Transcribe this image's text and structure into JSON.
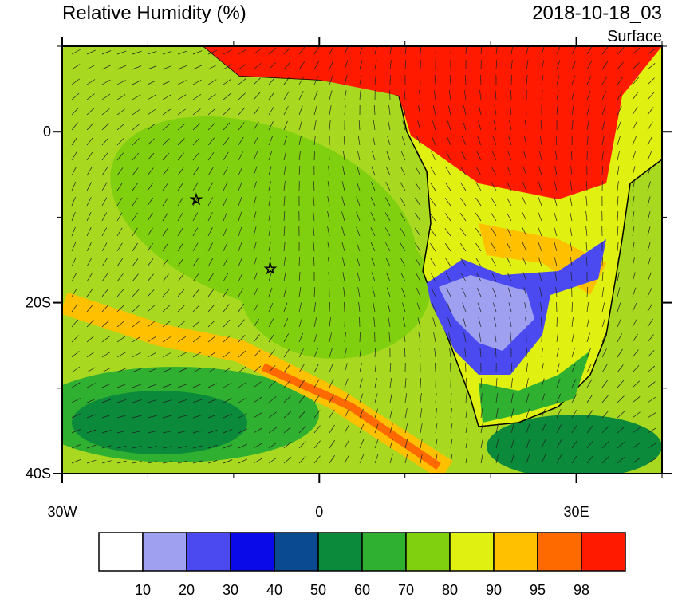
{
  "header": {
    "title": "Relative Humidity (%)",
    "valid_time": "2018-10-18_03",
    "level": "Surface"
  },
  "map": {
    "lon_range": [
      -30,
      40
    ],
    "lat_range": [
      -40,
      10
    ],
    "lon_ticks": [
      {
        "value": -30,
        "label": "30W"
      },
      0,
      {
        "value": 30,
        "label": "30E"
      }
    ],
    "lat_ticks": [
      0,
      {
        "value": -20,
        "label": "20S"
      },
      {
        "value": -40,
        "label": "40S"
      }
    ]
  },
  "colorbar": {
    "levels": [
      10,
      20,
      30,
      40,
      50,
      60,
      70,
      80,
      90,
      95,
      98
    ],
    "colors": [
      "#ffffff",
      "#a0a0f0",
      "#4a4af0",
      "#0a0ae8",
      "#0a4a90",
      "#0a8a3a",
      "#30b030",
      "#80d010",
      "#e0f010",
      "#ffc000",
      "#ff6a00",
      "#ff1a00"
    ]
  }
}
